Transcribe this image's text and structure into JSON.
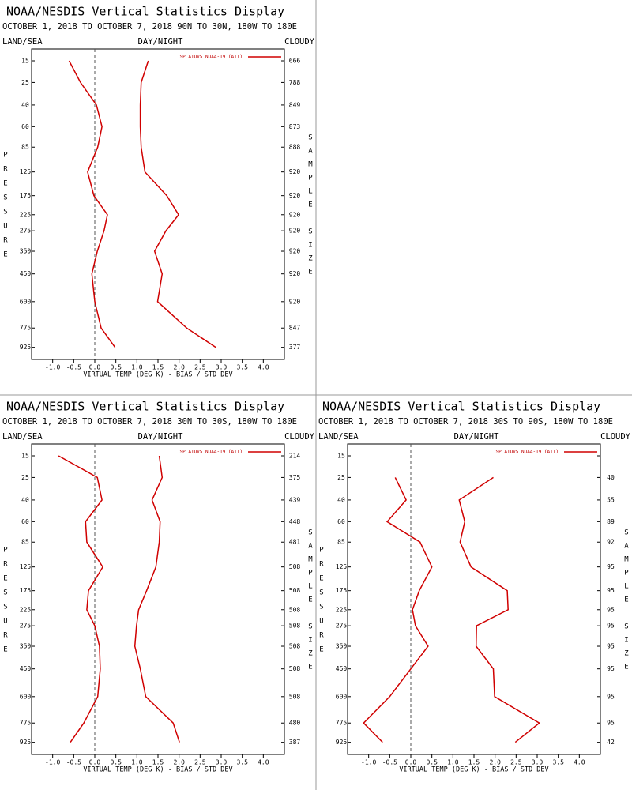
{
  "chart_data": [
    {
      "type": "line",
      "title": "NOAA/NESDIS Vertical Statistics Display",
      "subtitle": "OCTOBER 1, 2018 TO OCTOBER 7, 2018  90N TO 30N, 180W TO 180E",
      "header_left": "LAND/SEA",
      "header_center": "DAY/NIGHT",
      "header_right": "CLOUDY",
      "legend_label": "SP ATOVS NOAA-19 (A11)",
      "xlabel": "VIRTUAL TEMP (DEG K) - BIAS / STD DEV",
      "ylabel": "PRESSURE",
      "y2label": "SAMPLE SIZE",
      "xlim": [
        -1.5,
        4.5
      ],
      "xticks": [
        {
          "value": -1,
          "label": "-1.0"
        },
        -0.5,
        {
          "value": 0,
          "label": "0.0"
        },
        0.5,
        {
          "value": 1,
          "label": "1.0"
        },
        1.5,
        {
          "value": 2,
          "label": "2.0"
        },
        2.5,
        {
          "value": 3,
          "label": "3.0"
        },
        3.5,
        {
          "value": 4,
          "label": "4.0"
        }
      ],
      "ylim": [
        11,
        1030
      ],
      "yticks": [
        15,
        25,
        40,
        60,
        85,
        125,
        175,
        225,
        275,
        350,
        450,
        600,
        775,
        925
      ],
      "sample_size": [
        666,
        788,
        849,
        873,
        888,
        920,
        920,
        920,
        920,
        920,
        920,
        920,
        847,
        377
      ],
      "series": [
        {
          "color": "#d00000",
          "values": [
            -0.61,
            -0.34,
            0.04,
            0.17,
            0.07,
            -0.17,
            -0.02,
            0.3,
            0.22,
            0.06,
            -0.07,
            0.0,
            0.15,
            0.48
          ]
        },
        {
          "color": "#d00000",
          "values": [
            1.27,
            1.1,
            1.08,
            1.08,
            1.1,
            1.19,
            1.71,
            1.99,
            1.69,
            1.42,
            1.6,
            1.49,
            2.18,
            2.87
          ]
        }
      ]
    },
    {
      "type": "line",
      "title": "NOAA/NESDIS Vertical Statistics Display",
      "subtitle": "OCTOBER 1, 2018 TO OCTOBER 7, 2018  30N TO 30S, 180W TO 180E",
      "header_left": "LAND/SEA",
      "header_center": "DAY/NIGHT",
      "header_right": "CLOUDY",
      "legend_label": "SP ATOVS NOAA-19 (A11)",
      "xlabel": "VIRTUAL TEMP (DEG K) - BIAS / STD DEV",
      "ylabel": "PRESSURE",
      "y2label": "SAMPLE SIZE",
      "xlim": [
        -1.5,
        4.5
      ],
      "xticks": [
        {
          "value": -1,
          "label": "-1.0"
        },
        -0.5,
        {
          "value": 0,
          "label": "0.0"
        },
        0.5,
        {
          "value": 1,
          "label": "1.0"
        },
        1.5,
        {
          "value": 2,
          "label": "2.0"
        },
        2.5,
        {
          "value": 3,
          "label": "3.0"
        },
        3.5,
        {
          "value": 4,
          "label": "4.0"
        }
      ],
      "ylim": [
        11,
        1030
      ],
      "yticks": [
        15,
        25,
        40,
        60,
        85,
        125,
        175,
        225,
        275,
        350,
        450,
        600,
        775,
        925
      ],
      "sample_size": [
        214,
        375,
        439,
        448,
        481,
        508,
        508,
        508,
        508,
        508,
        508,
        508,
        480,
        387
      ],
      "series": [
        {
          "color": "#d00000",
          "values": [
            -0.86,
            0.06,
            0.17,
            -0.22,
            -0.19,
            0.19,
            -0.15,
            -0.19,
            0.0,
            0.11,
            0.13,
            0.07,
            -0.26,
            -0.58
          ]
        },
        {
          "color": "#d00000",
          "values": [
            1.53,
            1.6,
            1.36,
            1.55,
            1.53,
            1.45,
            1.23,
            1.04,
            0.99,
            0.95,
            1.08,
            1.21,
            1.86,
            2.01
          ]
        }
      ]
    },
    {
      "type": "line",
      "title": "NOAA/NESDIS Vertical Statistics Display",
      "subtitle": "OCTOBER 1, 2018 TO OCTOBER 7, 2018  30S TO 90S, 180W TO 180E",
      "header_left": "LAND/SEA",
      "header_center": "DAY/NIGHT",
      "header_right": "CLOUDY",
      "legend_label": "SP ATOVS NOAA-19 (A11)",
      "xlabel": "VIRTUAL TEMP (DEG K) - BIAS / STD DEV",
      "ylabel": "PRESSURE",
      "y2label": "SAMPLE SIZE",
      "xlim": [
        -1.5,
        4.5
      ],
      "xticks": [
        {
          "value": -1,
          "label": "-1.0"
        },
        -0.5,
        {
          "value": 0,
          "label": "0.0"
        },
        0.5,
        {
          "value": 1,
          "label": "1.0"
        },
        1.5,
        {
          "value": 2,
          "label": "2.0"
        },
        2.5,
        {
          "value": 3,
          "label": "3.0"
        },
        3.5,
        {
          "value": 4,
          "label": "4.0"
        }
      ],
      "ylim": [
        11,
        1030
      ],
      "yticks": [
        15,
        25,
        40,
        60,
        85,
        125,
        175,
        225,
        275,
        350,
        450,
        600,
        775,
        925
      ],
      "sample_size": [
        null,
        40,
        55,
        89,
        92,
        95,
        95,
        95,
        95,
        95,
        95,
        95,
        95,
        42
      ],
      "series": [
        {
          "color": "#d00000",
          "values": [
            null,
            -0.37,
            -0.11,
            -0.56,
            0.22,
            0.5,
            0.2,
            0.04,
            0.11,
            0.41,
            0.0,
            -0.5,
            -1.12,
            -0.67
          ]
        },
        {
          "color": "#d00000",
          "values": [
            null,
            1.96,
            1.15,
            1.28,
            1.17,
            1.43,
            2.29,
            2.31,
            1.56,
            1.55,
            1.96,
            1.99,
            3.05,
            2.48
          ]
        }
      ]
    }
  ]
}
